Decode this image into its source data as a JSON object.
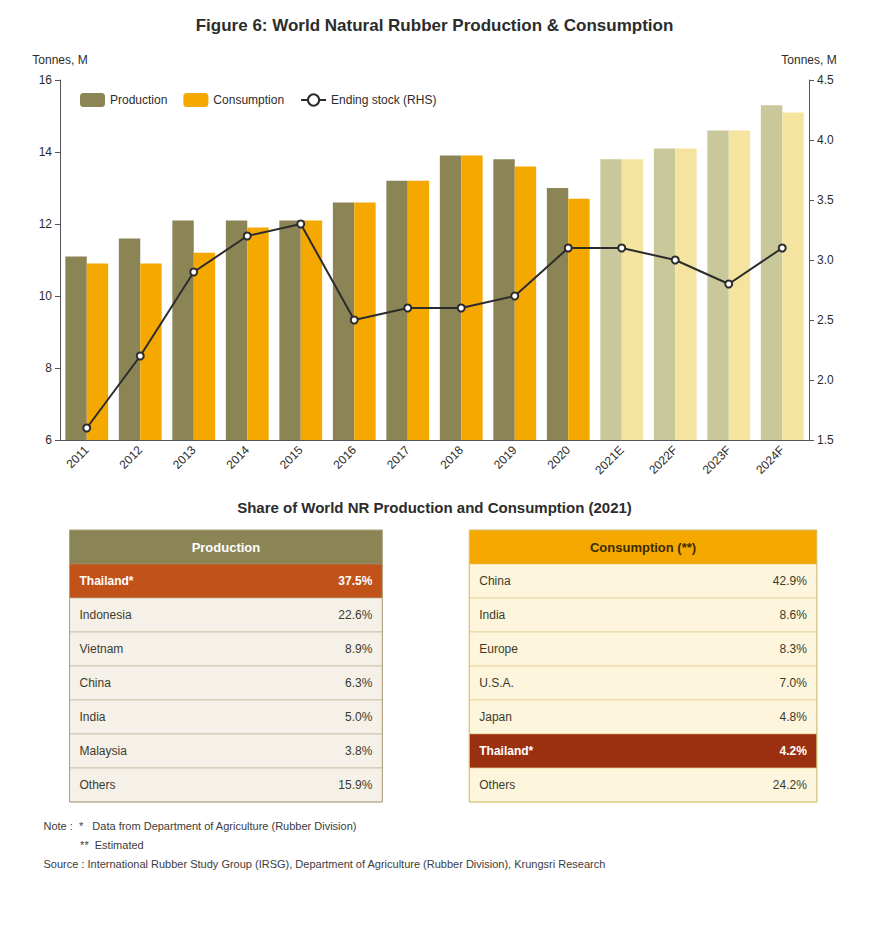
{
  "chart_data": {
    "type": "bar",
    "title": "Figure 6: World Natural Rubber Production & Consumption",
    "subtitle": "Share of World NR Production and Consumption (2021)",
    "categories": [
      "2011",
      "2012",
      "2013",
      "2014",
      "2015",
      "2016",
      "2017",
      "2018",
      "2019",
      "2020",
      "2021E",
      "2022F",
      "2023F",
      "2024F"
    ],
    "series": [
      {
        "name": "Production",
        "type": "bar",
        "color": "#8B8555",
        "colors": [
          "#8B8555",
          "#8B8555",
          "#8B8555",
          "#8B8555",
          "#8B8555",
          "#8B8555",
          "#8B8555",
          "#8B8555",
          "#8B8555",
          "#8B8555",
          "#C8C89A",
          "#C8C89A",
          "#C8C89A",
          "#C8C89A"
        ],
        "values": [
          11.1,
          11.6,
          12.1,
          12.1,
          12.1,
          12.6,
          13.2,
          13.9,
          13.8,
          13.0,
          13.8,
          14.1,
          14.6,
          15.3
        ]
      },
      {
        "name": "Consumption",
        "type": "bar",
        "color": "#F5A800",
        "colors": [
          "#F5A800",
          "#F5A800",
          "#F5A800",
          "#F5A800",
          "#F5A800",
          "#F5A800",
          "#F5A800",
          "#F5A800",
          "#F5A800",
          "#F5A800",
          "#F5E4A0",
          "#F5E4A0",
          "#F5E4A0",
          "#F5E4A0"
        ],
        "values": [
          10.9,
          10.9,
          11.2,
          11.9,
          12.1,
          12.6,
          13.2,
          13.9,
          13.6,
          12.7,
          13.8,
          14.1,
          14.6,
          15.1
        ]
      },
      {
        "name": "Ending stock (RHS)",
        "type": "line",
        "axis": "y2",
        "color": "#2c2c2c",
        "marker": "circle",
        "line_style": "solid",
        "values": [
          1.6,
          2.2,
          2.9,
          3.2,
          3.3,
          2.5,
          2.6,
          2.6,
          2.7,
          3.1,
          3.1,
          3.0,
          2.8,
          3.1
        ]
      }
    ],
    "ylabel": "Tonnes, M",
    "y2label": "Tonnes, M",
    "ylim": [
      6,
      16
    ],
    "yticks": [
      6,
      8,
      10,
      12,
      14,
      16
    ],
    "y2lim": [
      1.5,
      4.5
    ],
    "y2ticks": [
      1.5,
      {
        "value": 2,
        "label": "2.0"
      },
      2.5,
      {
        "value": 3,
        "label": "3.0"
      },
      3.5,
      {
        "value": 4,
        "label": "4.0"
      },
      4.5
    ],
    "grid": false,
    "legend": "upper left"
  },
  "tables": [
    {
      "header": "Production",
      "header_color": "#8B8555",
      "header_text_color": "#ffffff",
      "highlight": "Thailand*",
      "highlight_color": "#C0521A",
      "highlight_text_color": "#ffffff",
      "row_color": "#F5F0E8",
      "text_color": "#3c3c2c",
      "border_color": "#b0a080",
      "rows": [
        {
          "name": "Thailand*",
          "value": 37.5,
          "label": "37.5%"
        },
        {
          "name": "Indonesia",
          "value": 22.6,
          "label": "22.6%"
        },
        {
          "name": "Vietnam",
          "value": 8.9,
          "label": "8.9%"
        },
        {
          "name": "China",
          "value": 6.3,
          "label": "6.3%"
        },
        {
          "name": "India",
          "value": 5.0,
          "label": "5.0%"
        },
        {
          "name": "Malaysia",
          "value": 3.8,
          "label": "3.8%"
        },
        {
          "name": "Others",
          "value": 15.9,
          "label": "15.9%"
        }
      ]
    },
    {
      "header": "Consumption (**)",
      "header_color": "#F5A800",
      "header_text_color": "#3c2c00",
      "highlight": "Thailand*",
      "highlight_color": "#9B3010",
      "highlight_text_color": "#ffffff",
      "row_color": "#FDF5DC",
      "text_color": "#3c3c2c",
      "border_color": "#d4c070",
      "rows": [
        {
          "name": "China",
          "value": 42.9,
          "label": "42.9%"
        },
        {
          "name": "India",
          "value": 8.6,
          "label": "8.6%"
        },
        {
          "name": "Europe",
          "value": 8.3,
          "label": "8.3%"
        },
        {
          "name": "U.S.A.",
          "value": 7.0,
          "label": "7.0%"
        },
        {
          "name": "Japan",
          "value": 4.8,
          "label": "4.8%"
        },
        {
          "name": "Thailand*",
          "value": 4.2,
          "label": "4.2%"
        },
        {
          "name": "Others",
          "value": 24.2,
          "label": "24.2%"
        }
      ]
    }
  ],
  "notes": [
    "Note :  *   Data from Department of Agriculture (Rubber Division)",
    "            **  Estimated",
    "Source : International Rubber Study Group (IRSG), Department of Agriculture (Rubber Division), Krungsri Research"
  ]
}
